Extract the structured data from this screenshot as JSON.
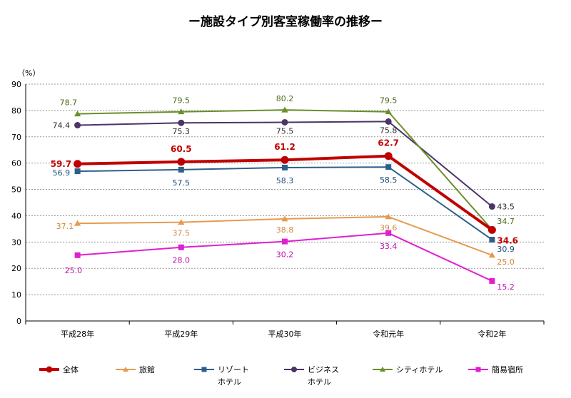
{
  "chart_data": {
    "type": "line",
    "title": "ー施設タイプ別客室稼働率の推移ー",
    "y_unit": "（%）",
    "ylim": [
      0,
      90
    ],
    "yticks": [
      0,
      10,
      20,
      30,
      40,
      50,
      60,
      70,
      80,
      90
    ],
    "grid": true,
    "legend_position": "bottom",
    "categories": [
      "平成28年",
      "平成29年",
      "平成30年",
      "令和元年",
      "令和2年"
    ],
    "series": [
      {
        "name": "全体",
        "values": [
          59.7,
          60.5,
          61.2,
          62.7,
          34.6
        ],
        "color": "#C00000",
        "marker": "circle",
        "labels": [
          "59.7",
          "60.5",
          "61.2",
          "62.7",
          "34.6"
        ]
      },
      {
        "name": "旅館",
        "values": [
          37.1,
          37.5,
          38.8,
          39.6,
          25.0
        ],
        "color": "#E59B4F",
        "marker": "triangle",
        "labels": [
          "37.1",
          "37.5",
          "38.8",
          "39.6",
          "25.0"
        ]
      },
      {
        "name": "リゾートホテル",
        "legend_lines": [
          "リゾート",
          "ホテル"
        ],
        "values": [
          56.9,
          57.5,
          58.3,
          58.5,
          30.9
        ],
        "color": "#2E5F8A",
        "marker": "square",
        "labels": [
          "56.9",
          "57.5",
          "58.3",
          "58.5",
          "30.9"
        ]
      },
      {
        "name": "ビジネスホテル",
        "legend_lines": [
          "ビジネス",
          "ホテル"
        ],
        "values": [
          74.4,
          75.3,
          75.5,
          75.8,
          43.5
        ],
        "color": "#4B3468",
        "marker": "circle",
        "labels": [
          "74.4",
          "75.3",
          "75.5",
          "75.8",
          "43.5"
        ]
      },
      {
        "name": "シティホテル",
        "values": [
          78.7,
          79.5,
          80.2,
          79.5,
          34.7
        ],
        "color": "#6B8E2A",
        "marker": "triangle",
        "labels": [
          "78.7",
          "79.5",
          "80.2",
          "79.5",
          "34.7"
        ]
      },
      {
        "name": "簡易宿所",
        "values": [
          25.0,
          28.0,
          30.2,
          33.4,
          15.2
        ],
        "color": "#E020D0",
        "marker": "square",
        "labels": [
          "25.0",
          "28.0",
          "30.2",
          "33.4",
          "15.2"
        ]
      }
    ]
  }
}
